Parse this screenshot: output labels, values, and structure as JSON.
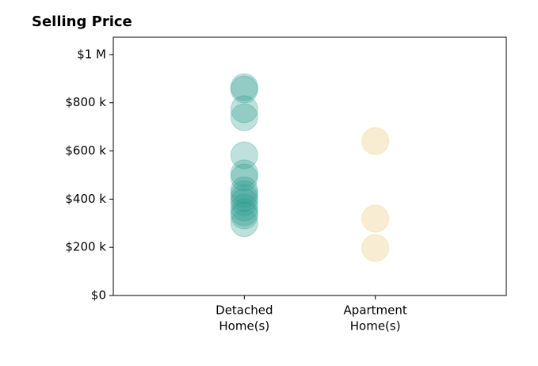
{
  "chart_data": {
    "type": "strip",
    "title": "Selling Price",
    "categories": [
      [
        "Detached",
        "Home(s)"
      ],
      [
        "Apartment",
        "Home(s)"
      ]
    ],
    "x": [
      1,
      2
    ],
    "xlim": [
      0,
      3
    ],
    "values": [
      [
        865000,
        855000,
        773000,
        740000,
        582000,
        507000,
        490000,
        437000,
        421000,
        405000,
        388000,
        365000,
        345000,
        332000,
        300000
      ],
      [
        641000,
        319000,
        197000
      ]
    ],
    "colors": [
      "#2a9d8f",
      "#e9c46a"
    ],
    "opacity": 0.3,
    "ylim": [
      0,
      1072000
    ],
    "yticks": [
      {
        "value": 0,
        "label": "$0"
      },
      {
        "value": 200000,
        "label": "$200 k"
      },
      {
        "value": 400000,
        "label": "$400 k"
      },
      {
        "value": 600000,
        "label": "$600 k"
      },
      {
        "value": 800000,
        "label": "$800 k"
      },
      {
        "value": 1000000,
        "label": "$1 M"
      }
    ]
  }
}
